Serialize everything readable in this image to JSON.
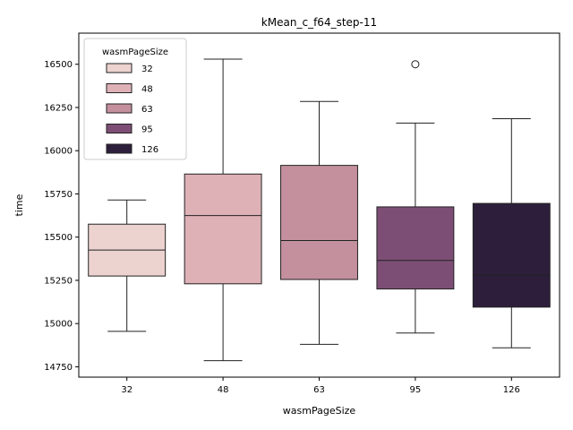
{
  "chart_data": {
    "type": "box",
    "title": "kMean_c_f64_step-11",
    "xlabel": "wasmPageSize",
    "ylabel": "time",
    "categories": [
      "32",
      "48",
      "63",
      "95",
      "126"
    ],
    "ylim": [
      14690,
      16680
    ],
    "yticks": [
      14750,
      15000,
      15250,
      15500,
      15750,
      16000,
      16250,
      16500
    ],
    "grid": false,
    "boxes": [
      {
        "category": "32",
        "whisker_low": 14955,
        "q1": 15275,
        "median": 15425,
        "q3": 15575,
        "whisker_high": 15715,
        "outliers": [],
        "color": "#ecd3d0"
      },
      {
        "category": "48",
        "whisker_low": 14785,
        "q1": 15230,
        "median": 15625,
        "q3": 15865,
        "whisker_high": 16530,
        "outliers": [],
        "color": "#deb1b7"
      },
      {
        "category": "63",
        "whisker_low": 14880,
        "q1": 15255,
        "median": 15480,
        "q3": 15915,
        "whisker_high": 16285,
        "outliers": [],
        "color": "#c4909e"
      },
      {
        "category": "95",
        "whisker_low": 14945,
        "q1": 15200,
        "median": 15365,
        "q3": 15675,
        "whisker_high": 16160,
        "outliers": [
          16500
        ],
        "color": "#7d4e75"
      },
      {
        "category": "126",
        "whisker_low": 14860,
        "q1": 15095,
        "median": 15280,
        "q3": 15695,
        "whisker_high": 16185,
        "outliers": [],
        "color": "#2d1f3c"
      }
    ],
    "legend": {
      "title": "wasmPageSize",
      "position": "top-left",
      "entries": [
        {
          "label": "32",
          "color": "#ecd3d0"
        },
        {
          "label": "48",
          "color": "#deb1b7"
        },
        {
          "label": "63",
          "color": "#c4909e"
        },
        {
          "label": "95",
          "color": "#7d4e75"
        },
        {
          "label": "126",
          "color": "#2d1f3c"
        }
      ]
    }
  }
}
